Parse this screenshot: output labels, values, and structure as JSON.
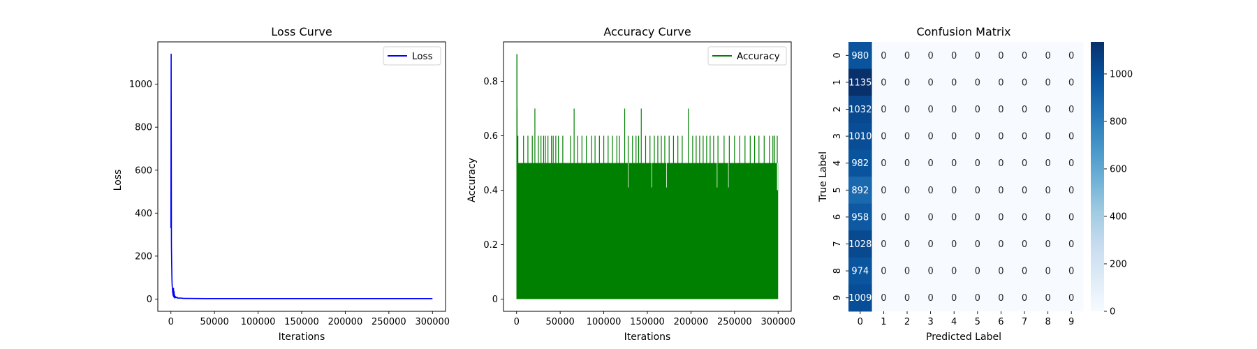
{
  "chart_data": [
    {
      "type": "line",
      "title": "Loss Curve",
      "xlabel": "Iterations",
      "ylabel": "Loss",
      "xlim": [
        -15000,
        315000
      ],
      "ylim": [
        -57,
        1197
      ],
      "xticks": [
        0,
        50000,
        100000,
        150000,
        200000,
        250000,
        300000
      ],
      "yticks": [
        0,
        200,
        400,
        600,
        800,
        1000
      ],
      "legend": {
        "placement": "top-right"
      },
      "grid": false,
      "series": [
        {
          "name": "Loss",
          "color": "#0000ff",
          "x": [
            0,
            300,
            600,
            900,
            1200,
            1500,
            1800,
            2100,
            2400,
            2700,
            3000,
            3300,
            3600,
            3900,
            4200,
            4500,
            5000,
            6000,
            7000,
            8000,
            10000,
            15000,
            20000,
            40000,
            60000,
            80000,
            100000,
            150000,
            200000,
            250000,
            300000
          ],
          "y": [
            330,
            1140,
            250,
            160,
            90,
            60,
            45,
            30,
            22,
            15,
            50,
            10,
            35,
            8,
            20,
            5,
            12,
            6,
            9,
            4,
            5,
            3,
            3,
            2,
            2,
            2,
            2,
            2,
            2,
            2,
            2
          ]
        }
      ]
    },
    {
      "type": "line",
      "title": "Accuracy Curve",
      "xlabel": "Iterations",
      "ylabel": "Accuracy",
      "xlim": [
        -15000,
        315000
      ],
      "ylim": [
        -0.045,
        0.945
      ],
      "xticks": [
        0,
        50000,
        100000,
        150000,
        200000,
        250000,
        300000
      ],
      "yticks": [
        0.0,
        0.2,
        0.4,
        0.6,
        0.8
      ],
      "legend": {
        "placement": "top-right"
      },
      "grid": false,
      "series": [
        {
          "name": "Accuracy",
          "color": "#008000",
          "description_of_shape": "dense oscillation between 0.0 and about 0.5 across all iterations",
          "band_min": 0.0,
          "band_max": 0.5,
          "start_spike": 0.9,
          "peaks_x": [
            600,
            1500,
            2400,
            8000,
            13000,
            18000,
            21000,
            25000,
            28000,
            31000,
            33000,
            36000,
            40000,
            42000,
            45000,
            48000,
            53000,
            62000,
            66000,
            70000,
            75000,
            80000,
            86000,
            90000,
            95000,
            100000,
            105000,
            110000,
            115000,
            118000,
            124000,
            128000,
            133000,
            137000,
            140000,
            143000,
            148000,
            153000,
            158000,
            162000,
            166000,
            170000,
            175000,
            180000,
            185000,
            190000,
            197000,
            202000,
            206000,
            210000,
            214000,
            218000,
            222000,
            226000,
            231000,
            238000,
            244000,
            250000,
            256000,
            262000,
            268000,
            273000,
            278000,
            284000,
            290000,
            294000,
            296000,
            299000
          ],
          "peaks_y": [
            0.7,
            0.6,
            0.5,
            0.6,
            0.6,
            0.6,
            0.7,
            0.6,
            0.6,
            0.6,
            0.6,
            0.6,
            0.6,
            0.6,
            0.6,
            0.6,
            0.6,
            0.6,
            0.7,
            0.6,
            0.6,
            0.6,
            0.6,
            0.6,
            0.6,
            0.6,
            0.6,
            0.6,
            0.6,
            0.6,
            0.7,
            0.6,
            0.6,
            0.6,
            0.6,
            0.7,
            0.6,
            0.6,
            0.6,
            0.6,
            0.6,
            0.6,
            0.6,
            0.6,
            0.6,
            0.6,
            0.7,
            0.6,
            0.6,
            0.6,
            0.6,
            0.6,
            0.6,
            0.6,
            0.6,
            0.6,
            0.6,
            0.6,
            0.6,
            0.6,
            0.6,
            0.6,
            0.6,
            0.6,
            0.6,
            0.6,
            0.6,
            0.6
          ],
          "end_level": 0.4
        }
      ]
    },
    {
      "type": "heatmap",
      "title": "Confusion Matrix",
      "xlabel": "Predicted Label",
      "ylabel": "True Label",
      "x_categories": [
        "0",
        "1",
        "2",
        "3",
        "4",
        "5",
        "6",
        "7",
        "8",
        "9"
      ],
      "y_categories": [
        "0",
        "1",
        "2",
        "3",
        "4",
        "5",
        "6",
        "7",
        "8",
        "9"
      ],
      "values": [
        [
          980,
          0,
          0,
          0,
          0,
          0,
          0,
          0,
          0,
          0
        ],
        [
          1135,
          0,
          0,
          0,
          0,
          0,
          0,
          0,
          0,
          0
        ],
        [
          1032,
          0,
          0,
          0,
          0,
          0,
          0,
          0,
          0,
          0
        ],
        [
          1010,
          0,
          0,
          0,
          0,
          0,
          0,
          0,
          0,
          0
        ],
        [
          982,
          0,
          0,
          0,
          0,
          0,
          0,
          0,
          0,
          0
        ],
        [
          892,
          0,
          0,
          0,
          0,
          0,
          0,
          0,
          0,
          0
        ],
        [
          958,
          0,
          0,
          0,
          0,
          0,
          0,
          0,
          0,
          0
        ],
        [
          1028,
          0,
          0,
          0,
          0,
          0,
          0,
          0,
          0,
          0
        ],
        [
          974,
          0,
          0,
          0,
          0,
          0,
          0,
          0,
          0,
          0
        ],
        [
          1009,
          0,
          0,
          0,
          0,
          0,
          0,
          0,
          0,
          0
        ]
      ],
      "colorbar": {
        "colormap": "Blues",
        "range": [
          0,
          1135
        ],
        "ticks": [
          0,
          200,
          400,
          600,
          800,
          1000
        ]
      }
    }
  ]
}
